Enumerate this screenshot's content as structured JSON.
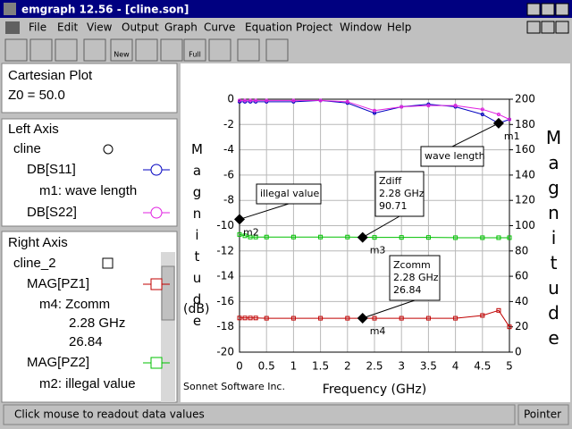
{
  "window": {
    "title": "emgraph 12.56 - [cline.son]"
  },
  "menu": [
    "File",
    "Edit",
    "View",
    "Output",
    "Graph",
    "Curve",
    "Equation",
    "Project",
    "Window",
    "Help"
  ],
  "toolbar": [
    "New",
    "Full"
  ],
  "panels": {
    "plot": [
      "Cartesian Plot",
      "Z0 = 50.0"
    ],
    "left_axis": {
      "title": "Left Axis",
      "items": [
        "cline",
        "DB[S11]",
        "m1: wave length",
        "DB[S22]"
      ]
    },
    "right_axis": {
      "title": "Right Axis",
      "items": [
        "cline_2",
        "MAG[PZ1]",
        "m4: Zcomm",
        "2.28 GHz",
        "26.84",
        "MAG[PZ2]",
        "m2: illegal value"
      ]
    }
  },
  "status": {
    "message": "Click mouse to readout data values",
    "mode": "Pointer"
  },
  "chart_data": {
    "type": "line",
    "x_label": "Frequency (GHz)",
    "y_label": "Magnitude",
    "y_unit": "(dB)",
    "y2_label": "Magnitude",
    "credit": "Sonnet Software Inc.",
    "x": [
      0,
      0.1,
      0.2,
      0.3,
      0.5,
      1,
      1.5,
      2,
      2.5,
      3,
      3.5,
      4,
      4.5,
      4.8,
      5
    ],
    "series": [
      {
        "name": "DB[S11]",
        "color": "#0000c0",
        "marker": "circle",
        "axis": "y",
        "values": [
          -0.2,
          -0.2,
          -0.2,
          -0.2,
          -0.2,
          -0.2,
          -0.1,
          -0.3,
          -1.1,
          -0.6,
          -0.4,
          -0.6,
          -1.2,
          -1.9,
          -1.6
        ]
      },
      {
        "name": "DB[S22]",
        "color": "#e020e0",
        "marker": "circle",
        "axis": "y",
        "values": [
          -0.1,
          -0.1,
          -0.1,
          -0.1,
          -0.1,
          -0.1,
          -0.1,
          -0.2,
          -0.9,
          -0.6,
          -0.5,
          -0.5,
          -0.8,
          -1.2,
          -1.6
        ]
      },
      {
        "name": "MAG[PZ1]",
        "color": "#c00000",
        "marker": "square",
        "axis": "y2",
        "values": [
          27,
          27,
          27,
          27,
          26.8,
          26.8,
          26.8,
          26.8,
          26.8,
          26.8,
          26.8,
          26.8,
          29,
          33,
          20
        ]
      },
      {
        "name": "MAG[PZ2]",
        "color": "#00c000",
        "marker": "square",
        "axis": "y2",
        "values": [
          93,
          92,
          91,
          91,
          91,
          91,
          91,
          91,
          90.7,
          90.7,
          90.7,
          90.5,
          90.5,
          90.5,
          90.5
        ]
      }
    ],
    "markers": [
      {
        "label": "m1",
        "x": 4.8,
        "y": -1.9,
        "axis": "y",
        "note": [
          "wave length"
        ]
      },
      {
        "label": "m2",
        "x": 0,
        "y": -9.5,
        "axis": "y",
        "note": [
          "illegal value"
        ]
      },
      {
        "label": "m3",
        "x": 2.28,
        "y": 90.71,
        "axis": "y2",
        "note": [
          "Zdiff",
          "2.28 GHz",
          "90.71"
        ]
      },
      {
        "label": "m4",
        "x": 2.28,
        "y": 26.84,
        "axis": "y2",
        "note": [
          "Zcomm",
          "2.28 GHz",
          "26.84"
        ]
      }
    ],
    "xlim": [
      0,
      5
    ],
    "xticks": [
      0,
      0.5,
      1,
      1.5,
      2,
      2.5,
      3,
      3.5,
      4,
      4.5,
      5
    ],
    "ylim": [
      -20,
      0
    ],
    "yticks": [
      -20,
      -18,
      -16,
      -14,
      -12,
      -10,
      -8,
      -6,
      -4,
      -2,
      0
    ],
    "y2lim": [
      0,
      200
    ],
    "y2ticks": [
      0,
      20,
      40,
      60,
      80,
      100,
      120,
      140,
      160,
      180,
      200
    ],
    "grid": true
  }
}
